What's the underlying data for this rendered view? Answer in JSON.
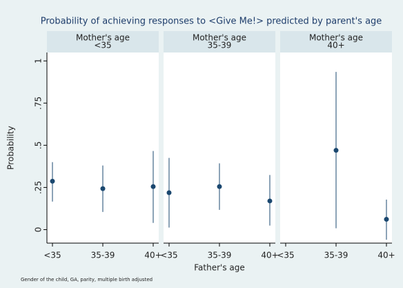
{
  "chart_data": {
    "type": "errorbar",
    "title": "Probability of achieving responses to <Give Me!> predicted by parent's age",
    "ylabel": "Probability",
    "xlabel": "Father's age",
    "note": "Gender of the child, GA, parity, multiple birth adjusted",
    "categories": [
      "<35",
      "35-39",
      "40+"
    ],
    "ylim": [
      -0.08,
      1.05
    ],
    "yticks": [
      0,
      {
        "value": 0.25,
        "label": ".25"
      },
      {
        "value": 0.5,
        "label": ".5"
      },
      {
        "value": 0.75,
        "label": ".75"
      },
      1
    ],
    "color": "#1a476f",
    "panels": [
      {
        "title": [
          "Mother's age",
          "<35"
        ],
        "values": [
          0.287,
          0.243,
          0.255
        ],
        "lower": [
          0.166,
          0.105,
          0.04
        ],
        "upper": [
          0.4,
          0.38,
          0.466
        ]
      },
      {
        "title": [
          "Mother's age",
          "35-39"
        ],
        "values": [
          0.219,
          0.255,
          0.17
        ],
        "lower": [
          0.012,
          0.117,
          0.024
        ],
        "upper": [
          0.425,
          0.393,
          0.324
        ]
      },
      {
        "title": [
          "Mother's age",
          "40+"
        ],
        "values": [
          null,
          0.47,
          0.061
        ],
        "lower": [
          null,
          0.008,
          -0.06
        ],
        "upper": [
          null,
          0.935,
          0.178
        ]
      }
    ]
  }
}
